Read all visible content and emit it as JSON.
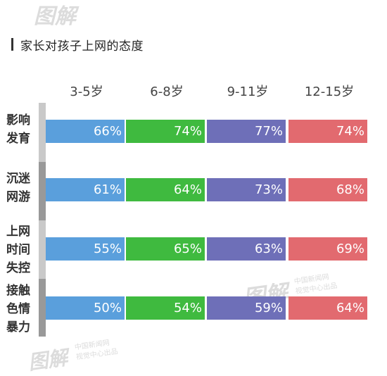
{
  "chart_data": {
    "type": "table",
    "title": "家长对孩子上网的态度",
    "categories": [
      "3-5岁",
      "6-8岁",
      "9-11岁",
      "12-15岁"
    ],
    "rows": [
      {
        "label_lines": [
          "影响",
          "发育"
        ],
        "values": [
          "66%",
          "74%",
          "77%",
          "74%"
        ]
      },
      {
        "label_lines": [
          "沉迷",
          "网游"
        ],
        "values": [
          "61%",
          "64%",
          "73%",
          "68%"
        ]
      },
      {
        "label_lines": [
          "上网",
          "时间",
          "失控"
        ],
        "values": [
          "55%",
          "65%",
          "63%",
          "69%"
        ]
      },
      {
        "label_lines": [
          "接触",
          "色情",
          "暴力"
        ],
        "values": [
          "50%",
          "54%",
          "59%",
          "64%"
        ]
      }
    ],
    "colors": [
      "#5a9fdc",
      "#3fba3f",
      "#6e6fb8",
      "#e26a6f"
    ]
  },
  "watermark": {
    "logo_text": "图解",
    "line1": "中国新闻网",
    "line2": "视觉中心出品"
  }
}
